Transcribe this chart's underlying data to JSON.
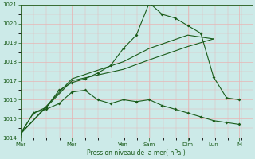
{
  "title": "",
  "xlabel": "Pression niveau de la mer( hPa )",
  "ylim": [
    1014,
    1021
  ],
  "yticks": [
    1014,
    1015,
    1016,
    1017,
    1018,
    1019,
    1020,
    1021
  ],
  "background_color": "#cceae8",
  "grid_color": "#e8b4b4",
  "line_color": "#1a5c1a",
  "day_labels": [
    "Mar",
    "Mer",
    "Ven",
    "Sam",
    "Dim",
    "Lun",
    "M"
  ],
  "day_positions": [
    0.0,
    0.222,
    0.444,
    0.556,
    0.722,
    0.833,
    0.944
  ],
  "xlim": [
    0,
    1.0
  ],
  "series1_x": [
    0.0,
    0.056,
    0.111,
    0.167,
    0.222,
    0.278,
    0.333,
    0.389,
    0.444,
    0.5,
    0.556,
    0.611,
    0.667,
    0.722,
    0.778,
    0.833,
    0.889,
    0.944
  ],
  "series1_y": [
    1014.2,
    1015.3,
    1015.5,
    1015.8,
    1016.4,
    1016.5,
    1016.0,
    1015.8,
    1016.0,
    1015.9,
    1016.0,
    1015.7,
    1015.5,
    1015.3,
    1015.1,
    1014.9,
    1014.8,
    1014.7
  ],
  "series2_x": [
    0.0,
    0.222,
    0.444,
    0.556,
    0.722,
    0.833
  ],
  "series2_y": [
    1014.2,
    1017.0,
    1017.6,
    1018.1,
    1018.8,
    1019.2
  ],
  "series3_x": [
    0.0,
    0.222,
    0.444,
    0.556,
    0.722,
    0.833
  ],
  "series3_y": [
    1014.2,
    1017.1,
    1018.0,
    1018.7,
    1019.4,
    1019.2
  ],
  "series4_x": [
    0.0,
    0.056,
    0.111,
    0.167,
    0.222,
    0.278,
    0.333,
    0.389,
    0.444,
    0.5,
    0.556,
    0.611,
    0.667,
    0.722,
    0.778,
    0.833,
    0.889,
    0.944
  ],
  "series4_y": [
    1014.2,
    1015.3,
    1015.6,
    1016.5,
    1016.9,
    1017.1,
    1017.4,
    1017.8,
    1018.7,
    1019.4,
    1021.1,
    1020.5,
    1020.3,
    1019.9,
    1019.5,
    1017.2,
    1016.1,
    1016.0
  ]
}
